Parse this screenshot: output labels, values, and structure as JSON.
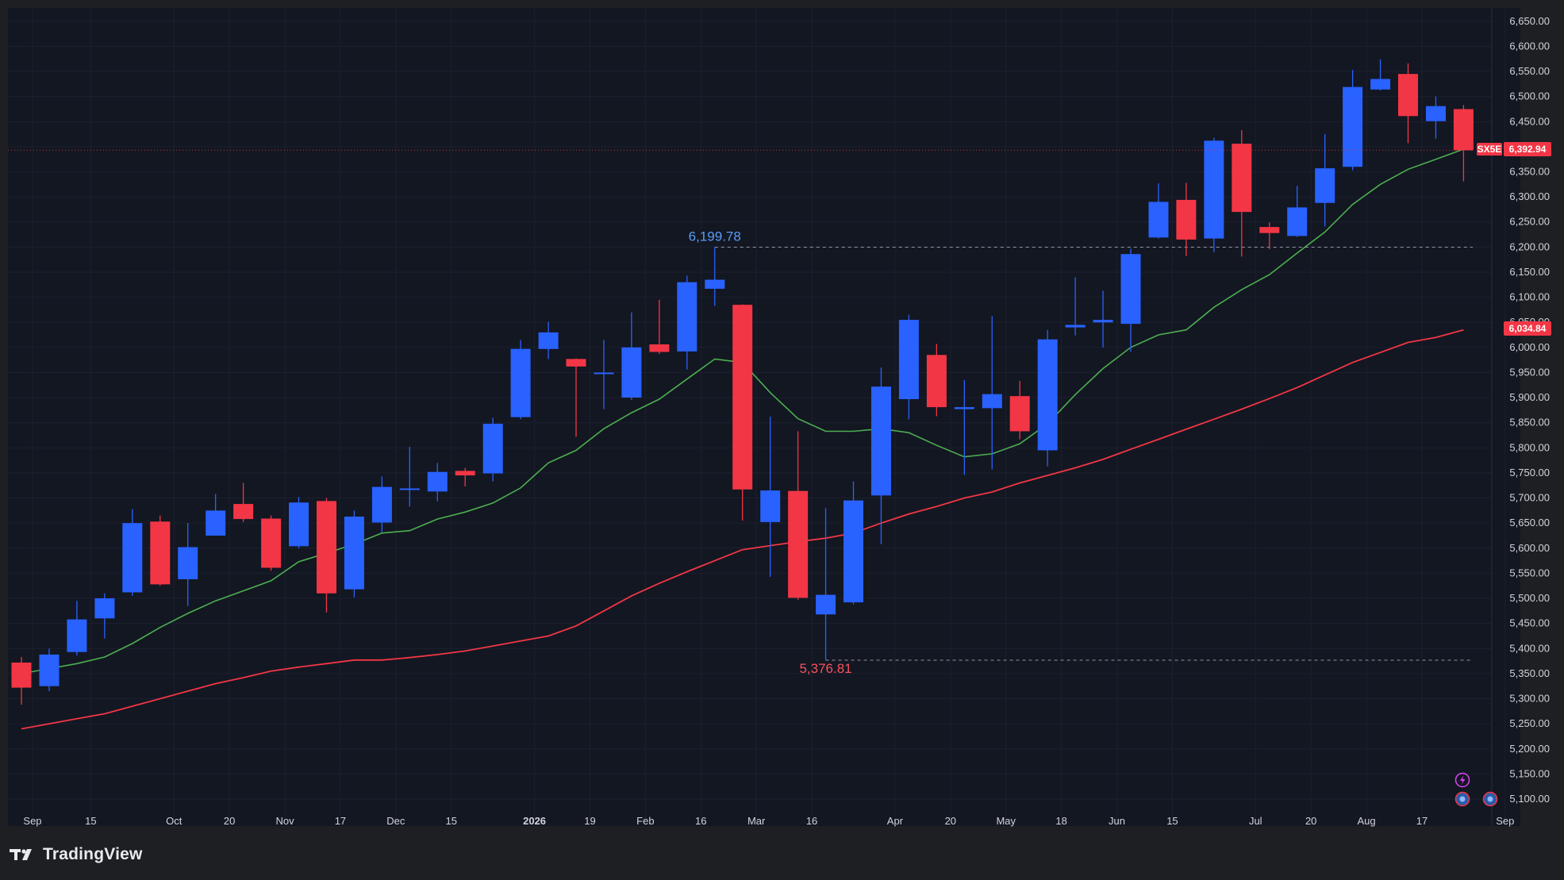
{
  "app": {
    "brand": "TradingView"
  },
  "chart_data": {
    "type": "candlestick",
    "symbol": "SX5E",
    "interval": "weekly",
    "last_price_label": "6,392.94",
    "ma_long_label": "6,034.84",
    "colors": {
      "up": "#2962ff",
      "down": "#f23645",
      "ma_short": "#4caf50",
      "ma_long": "#f23645",
      "high_label": "#5b9cf6",
      "low_label": "#f7525f",
      "background": "#131722",
      "axis_text": "#d1d4dc",
      "grid": "#1c2030",
      "tag_bg": "#f23645"
    },
    "y_axis": {
      "min": 5080,
      "max": 6660,
      "step": 50,
      "position": "right",
      "ticks": [
        "5,100.00",
        "5,150.00",
        "5,200.00",
        "5,250.00",
        "5,300.00",
        "5,350.00",
        "5,400.00",
        "5,450.00",
        "5,500.00",
        "5,550.00",
        "5,600.00",
        "5,650.00",
        "5,700.00",
        "5,750.00",
        "5,800.00",
        "5,850.00",
        "5,900.00",
        "5,950.00",
        "6,000.00",
        "6,050.00",
        "6,100.00",
        "6,150.00",
        "6,200.00",
        "6,250.00",
        "6,300.00",
        "6,350.00",
        "6,400.00",
        "6,450.00",
        "6,500.00",
        "6,550.00",
        "6,600.00",
        "6,650.00"
      ]
    },
    "x_axis": {
      "ticks": [
        {
          "label": "Sep",
          "idx": 0.4
        },
        {
          "label": "15",
          "idx": 2.5
        },
        {
          "label": "Oct",
          "idx": 5.5
        },
        {
          "label": "20",
          "idx": 7.5
        },
        {
          "label": "Nov",
          "idx": 9.5
        },
        {
          "label": "17",
          "idx": 11.5
        },
        {
          "label": "Dec",
          "idx": 13.5
        },
        {
          "label": "15",
          "idx": 15.5
        },
        {
          "label": "2026",
          "idx": 18.5,
          "bold": true
        },
        {
          "label": "19",
          "idx": 20.5
        },
        {
          "label": "Feb",
          "idx": 22.5
        },
        {
          "label": "16",
          "idx": 24.5
        },
        {
          "label": "Mar",
          "idx": 26.5
        },
        {
          "label": "16",
          "idx": 28.5
        },
        {
          "label": "Apr",
          "idx": 31.5
        },
        {
          "label": "20",
          "idx": 33.5
        },
        {
          "label": "May",
          "idx": 35.5
        },
        {
          "label": "18",
          "idx": 37.5
        },
        {
          "label": "Jun",
          "idx": 39.5
        },
        {
          "label": "15",
          "idx": 41.5
        },
        {
          "label": "Jul",
          "idx": 44.5
        },
        {
          "label": "20",
          "idx": 46.5
        },
        {
          "label": "Aug",
          "idx": 48.5
        },
        {
          "label": "17",
          "idx": 50.5
        },
        {
          "label": "Sep",
          "idx": 53.5
        }
      ]
    },
    "candles": [
      {
        "o": 5372,
        "h": 5383,
        "l": 5288,
        "c": 5322
      },
      {
        "o": 5325,
        "h": 5400,
        "l": 5315,
        "c": 5388
      },
      {
        "o": 5393,
        "h": 5495,
        "l": 5386,
        "c": 5458
      },
      {
        "o": 5460,
        "h": 5510,
        "l": 5420,
        "c": 5500
      },
      {
        "o": 5512,
        "h": 5678,
        "l": 5505,
        "c": 5650
      },
      {
        "o": 5653,
        "h": 5665,
        "l": 5525,
        "c": 5528
      },
      {
        "o": 5538,
        "h": 5650,
        "l": 5485,
        "c": 5602
      },
      {
        "o": 5625,
        "h": 5708,
        "l": 5625,
        "c": 5675
      },
      {
        "o": 5688,
        "h": 5730,
        "l": 5652,
        "c": 5658
      },
      {
        "o": 5659,
        "h": 5665,
        "l": 5555,
        "c": 5561
      },
      {
        "o": 5604,
        "h": 5702,
        "l": 5600,
        "c": 5691
      },
      {
        "o": 5694,
        "h": 5700,
        "l": 5472,
        "c": 5510
      },
      {
        "o": 5518,
        "h": 5675,
        "l": 5502,
        "c": 5663
      },
      {
        "o": 5651,
        "h": 5743,
        "l": 5631,
        "c": 5722
      },
      {
        "o": 5717,
        "h": 5802,
        "l": 5683,
        "c": 5719
      },
      {
        "o": 5713,
        "h": 5770,
        "l": 5693,
        "c": 5752
      },
      {
        "o": 5754,
        "h": 5760,
        "l": 5723,
        "c": 5745
      },
      {
        "o": 5749,
        "h": 5860,
        "l": 5733,
        "c": 5848
      },
      {
        "o": 5861,
        "h": 6015,
        "l": 5857,
        "c": 5997
      },
      {
        "o": 5997,
        "h": 6051,
        "l": 5977,
        "c": 6030
      },
      {
        "o": 5977,
        "h": 5978,
        "l": 5822,
        "c": 5962
      },
      {
        "o": 5948,
        "h": 6015,
        "l": 5877,
        "c": 5950
      },
      {
        "o": 5900,
        "h": 6070,
        "l": 5895,
        "c": 6000
      },
      {
        "o": 6006,
        "h": 6095,
        "l": 5987,
        "c": 5991
      },
      {
        "o": 5992,
        "h": 6143,
        "l": 5956,
        "c": 6130
      },
      {
        "o": 6117,
        "h": 6200,
        "l": 6083,
        "c": 6135
      },
      {
        "o": 6085,
        "h": 6086,
        "l": 5655,
        "c": 5717
      },
      {
        "o": 5652,
        "h": 5862,
        "l": 5543,
        "c": 5715
      },
      {
        "o": 5714,
        "h": 5833,
        "l": 5497,
        "c": 5501
      },
      {
        "o": 5468,
        "h": 5680,
        "l": 5377,
        "c": 5507
      },
      {
        "o": 5492,
        "h": 5733,
        "l": 5488,
        "c": 5695
      },
      {
        "o": 5705,
        "h": 5960,
        "l": 5608,
        "c": 5922
      },
      {
        "o": 5897,
        "h": 6065,
        "l": 5857,
        "c": 6055
      },
      {
        "o": 5985,
        "h": 6007,
        "l": 5863,
        "c": 5881
      },
      {
        "o": 5877,
        "h": 5935,
        "l": 5746,
        "c": 5881
      },
      {
        "o": 5879,
        "h": 6062,
        "l": 5757,
        "c": 5907
      },
      {
        "o": 5903,
        "h": 5933,
        "l": 5817,
        "c": 5833
      },
      {
        "o": 5795,
        "h": 6035,
        "l": 5763,
        "c": 6016
      },
      {
        "o": 6040,
        "h": 6140,
        "l": 6024,
        "c": 6045
      },
      {
        "o": 6050,
        "h": 6113,
        "l": 6000,
        "c": 6055
      },
      {
        "o": 6047,
        "h": 6197,
        "l": 5991,
        "c": 6186
      },
      {
        "o": 6219,
        "h": 6327,
        "l": 6217,
        "c": 6290
      },
      {
        "o": 6294,
        "h": 6328,
        "l": 6182,
        "c": 6215
      },
      {
        "o": 6217,
        "h": 6418,
        "l": 6190,
        "c": 6412
      },
      {
        "o": 6406,
        "h": 6433,
        "l": 6181,
        "c": 6270
      },
      {
        "o": 6240,
        "h": 6249,
        "l": 6196,
        "c": 6228
      },
      {
        "o": 6222,
        "h": 6322,
        "l": 6220,
        "c": 6279
      },
      {
        "o": 6288,
        "h": 6425,
        "l": 6241,
        "c": 6357
      },
      {
        "o": 6360,
        "h": 6553,
        "l": 6353,
        "c": 6519
      },
      {
        "o": 6514,
        "h": 6574,
        "l": 6512,
        "c": 6535
      },
      {
        "o": 6545,
        "h": 6566,
        "l": 6407,
        "c": 6461
      },
      {
        "o": 6451,
        "h": 6500,
        "l": 6416,
        "c": 6481
      },
      {
        "o": 6475,
        "h": 6483,
        "l": 6331,
        "c": 6393
      }
    ],
    "ma_short": [
      5350,
      5360,
      5370,
      5383,
      5410,
      5442,
      5470,
      5495,
      5515,
      5535,
      5573,
      5590,
      5608,
      5630,
      5635,
      5658,
      5672,
      5690,
      5720,
      5770,
      5795,
      5838,
      5870,
      5897,
      5937,
      5977,
      5970,
      5910,
      5858,
      5833,
      5833,
      5838,
      5830,
      5805,
      5782,
      5788,
      5808,
      5848,
      5906,
      5958,
      6000,
      6025,
      6035,
      6080,
      6115,
      6145,
      6188,
      6230,
      6285,
      6325,
      6355,
      6375,
      6395
    ],
    "ma_long": [
      5240,
      5250,
      5260,
      5270,
      5285,
      5300,
      5315,
      5330,
      5342,
      5355,
      5363,
      5370,
      5377,
      5377,
      5382,
      5388,
      5395,
      5405,
      5415,
      5425,
      5445,
      5475,
      5505,
      5530,
      5553,
      5575,
      5597,
      5605,
      5613,
      5620,
      5630,
      5650,
      5668,
      5683,
      5700,
      5712,
      5730,
      5745,
      5760,
      5777,
      5797,
      5817,
      5837,
      5857,
      5877,
      5898,
      5920,
      5945,
      5970,
      5990,
      6010,
      6020,
      6035
    ],
    "annotations": [
      {
        "kind": "high",
        "label": "6,199.78",
        "value": 6199.78,
        "idx": 25
      },
      {
        "kind": "low",
        "label": "5,376.81",
        "value": 5376.81,
        "idx": 29
      }
    ]
  }
}
